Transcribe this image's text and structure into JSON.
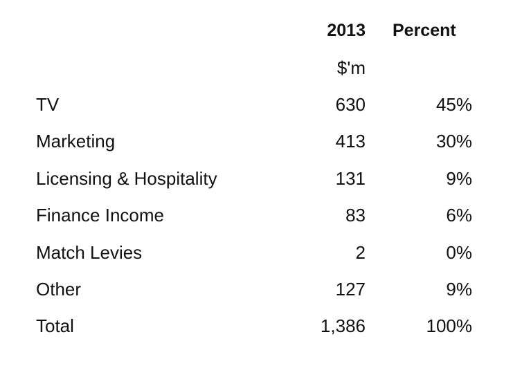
{
  "table": {
    "header": {
      "year": "2013",
      "percent": "Percent",
      "unit": "$'m"
    },
    "rows": [
      {
        "label": "TV",
        "value": "630",
        "percent": "45%"
      },
      {
        "label": "Marketing",
        "value": "413",
        "percent": "30%"
      },
      {
        "label": "Licensing & Hospitality",
        "value": "131",
        "percent": "9%"
      },
      {
        "label": "Finance Income",
        "value": "83",
        "percent": "6%"
      },
      {
        "label": "Match Levies",
        "value": "2",
        "percent": "0%"
      },
      {
        "label": "Other",
        "value": "127",
        "percent": "9%"
      },
      {
        "label": "Total",
        "value": "1,386",
        "percent": "100%"
      }
    ]
  }
}
